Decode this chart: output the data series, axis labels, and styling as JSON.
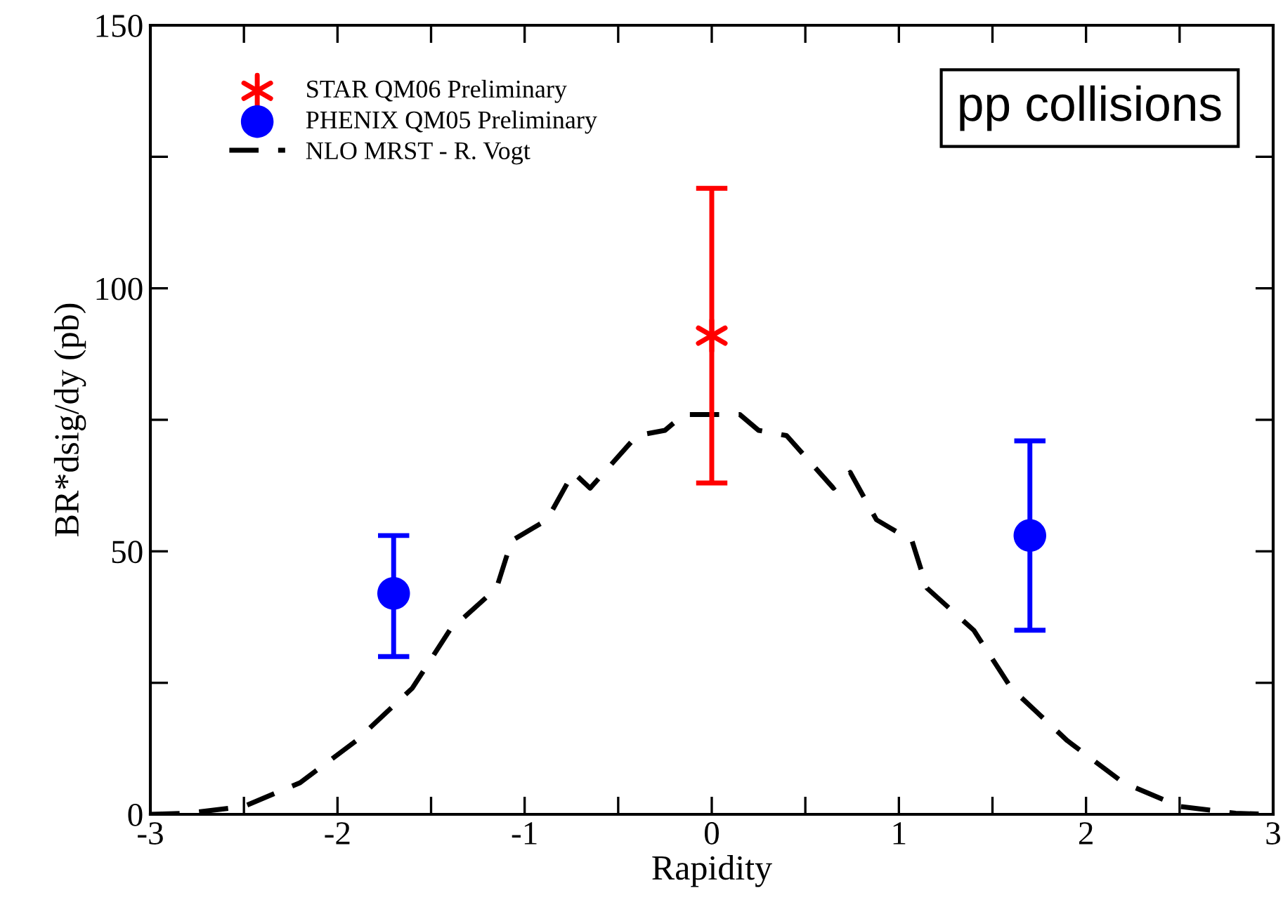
{
  "chart_data": {
    "type": "scatter",
    "xlabel": "Rapidity",
    "ylabel": "BR*dsig/dy (pb)",
    "xlim": [
      -3,
      3
    ],
    "ylim": [
      0,
      150
    ],
    "xticks": [
      -3,
      {
        "value": -2.5,
        "label": null
      },
      -2,
      {
        "value": -1.5,
        "label": null
      },
      -1,
      {
        "value": -0.5,
        "label": null
      },
      0,
      {
        "value": 0.5,
        "label": null
      },
      1,
      {
        "value": 1.5,
        "label": null
      },
      2,
      {
        "value": 2.5,
        "label": null
      },
      3
    ],
    "yticks": [
      0,
      {
        "value": 25,
        "label": null
      },
      50,
      {
        "value": 75,
        "label": null
      },
      100,
      {
        "value": 125,
        "label": null
      },
      150
    ],
    "grid": false,
    "legend": "top left",
    "annotations": [
      "pp collisions"
    ],
    "series": [
      {
        "name": "STAR QM06 Preliminary",
        "marker": "cross",
        "color": "#ff0000",
        "x": [
          0
        ],
        "values": [
          91
        ],
        "errors": [
          [
            63,
            119
          ]
        ]
      },
      {
        "name": "PHENIX QM05 Preliminary",
        "marker": "circle",
        "color": "#0000ff",
        "x": [
          -1.7,
          1.7
        ],
        "values": [
          42,
          53
        ],
        "errors": [
          [
            30,
            53
          ],
          [
            35,
            71
          ]
        ]
      },
      {
        "name": "NLO MRST - R. Vogt",
        "type": "line",
        "marker": "none",
        "line_style": "dashed",
        "color": "#000000",
        "x": [
          -3,
          -2.8,
          -2.5,
          -2.2,
          -1.9,
          -1.6,
          -1.4,
          -1.15,
          -1.07,
          -0.88,
          -0.74,
          -0.65,
          -0.4,
          -0.25,
          -0.15,
          0.15,
          0.25,
          0.4,
          0.65,
          0.74,
          0.88,
          1.07,
          1.15,
          1.4,
          1.6,
          1.9,
          2.2,
          2.5,
          2.8,
          3
        ],
        "values": [
          0,
          0.2,
          1.5,
          6,
          14,
          24,
          35,
          43,
          52,
          56,
          65,
          62,
          72,
          73,
          76,
          76,
          73,
          72,
          62,
          65,
          56,
          52,
          43,
          35,
          24,
          14,
          6,
          1.5,
          0.2,
          0
        ]
      }
    ]
  }
}
